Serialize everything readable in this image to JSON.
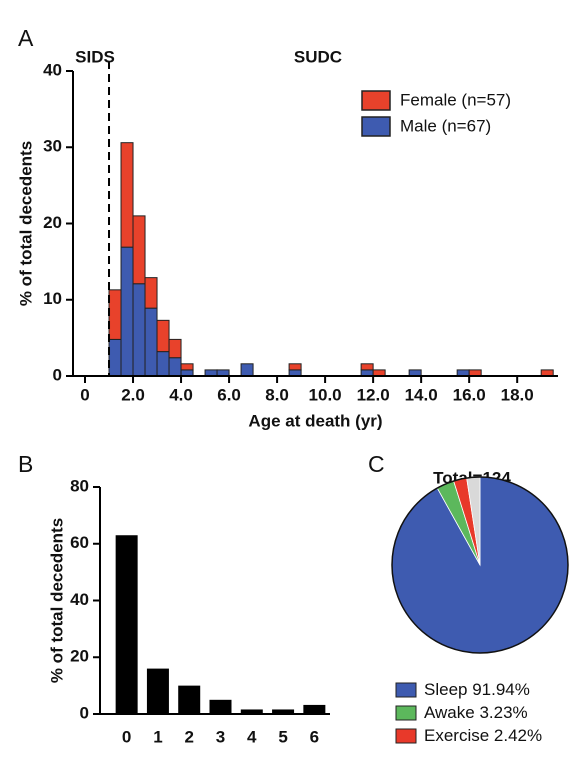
{
  "chart_data": [
    {
      "type": "histogram",
      "panel_label": "A",
      "annotations": [
        "SIDS",
        "SUDC"
      ],
      "xlabel": "Age at death (yr)",
      "ylabel": "% of total decedents",
      "bins": [
        1.0,
        1.5,
        2.0,
        2.5,
        3.0,
        3.5,
        4.0,
        4.5,
        5.0,
        5.5,
        6.0,
        6.5,
        7.0,
        7.5,
        8.0,
        8.5,
        9.0,
        9.5,
        10.0,
        10.5,
        11.0,
        11.5,
        12.0,
        12.5,
        13.0,
        13.5,
        14.0,
        14.5,
        15.0,
        15.5,
        16.0,
        16.5,
        17.0,
        17.5,
        18.0,
        18.5,
        19.0,
        19.5
      ],
      "series": [
        {
          "name": "Male (n=67)",
          "color": "#3e5bb0",
          "values": [
            4.8,
            16.9,
            12.1,
            8.9,
            3.2,
            2.4,
            0.8,
            0,
            0.8,
            0.8,
            0,
            1.6,
            0,
            0,
            0,
            0.8,
            0,
            0,
            0,
            0,
            0,
            0.8,
            0,
            0,
            0,
            0.8,
            0,
            0,
            0,
            0.8,
            0,
            0,
            0,
            0,
            0,
            0,
            0
          ]
        },
        {
          "name": "Female (n=57)",
          "color": "#e8422b",
          "values": [
            6.5,
            13.7,
            8.9,
            4.0,
            4.1,
            2.4,
            0.8,
            0,
            0,
            0,
            0,
            0,
            0,
            0,
            0,
            0.8,
            0,
            0,
            0,
            0,
            0,
            0.8,
            0.8,
            0,
            0,
            0,
            0,
            0,
            0,
            0,
            0.8,
            0,
            0,
            0,
            0,
            0,
            0.8
          ]
        }
      ],
      "stacked": true,
      "legend": "upper right",
      "reference_line_x": 1,
      "xlim": [
        -0.5,
        19.7
      ],
      "xticks": [
        0,
        {
          "value": 2,
          "label": "2.0"
        },
        {
          "value": 4,
          "label": "4.0"
        },
        {
          "value": 6,
          "label": "6.0"
        },
        {
          "value": 8,
          "label": "8.0"
        },
        {
          "value": 10,
          "label": "10.0"
        },
        {
          "value": 12,
          "label": "12.0"
        },
        {
          "value": 14,
          "label": "14.0"
        },
        {
          "value": 16,
          "label": "16.0"
        },
        {
          "value": 18,
          "label": "18.0"
        }
      ],
      "ylim": [
        0,
        40
      ],
      "yticks": [
        0,
        10,
        20,
        30,
        40
      ]
    },
    {
      "type": "bar",
      "panel_label": "B",
      "ylabel": "% of total decedents",
      "categories": [
        "0",
        "1",
        "2",
        "3",
        "4",
        "5",
        "6"
      ],
      "values": [
        63,
        16,
        10,
        5,
        1.6,
        1.6,
        3.2
      ],
      "color": "#000000",
      "ylim": [
        0,
        80
      ],
      "yticks": [
        0,
        20,
        40,
        60,
        80
      ]
    },
    {
      "type": "pie",
      "panel_label": "C",
      "title": "Total=124",
      "categories": [
        "Sleep",
        "Awake",
        "Exercise",
        null
      ],
      "values": [
        91.94,
        3.23,
        2.42,
        2.42
      ],
      "value_labels": [
        "91.94%",
        "3.23%",
        "2.42%",
        null
      ],
      "colors": [
        "#3e5bb0",
        "#5cb85c",
        "#e8392a",
        "#d9d9d9"
      ]
    }
  ]
}
